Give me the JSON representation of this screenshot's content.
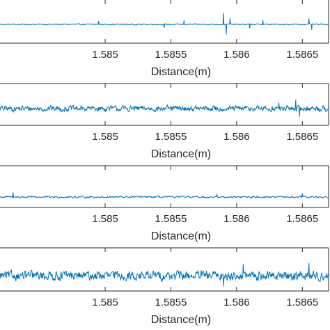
{
  "chart_data": [
    {
      "type": "line",
      "xlabel": "Distance(m)",
      "xlim": [
        1.5842,
        1.5867
      ],
      "xticks": [
        1.585,
        1.5855,
        1.586,
        1.5865
      ],
      "xtick_labels": [
        "1.585",
        "1.5855",
        "1.586",
        "1.5865"
      ],
      "noise_level": 0.07,
      "spikes": [
        {
          "x": 1.58495,
          "y": 0.25
        },
        {
          "x": 1.5856,
          "y": 0.3
        },
        {
          "x": 1.5861,
          "y": -0.3
        },
        {
          "x": 1.5859,
          "y": 0.9
        },
        {
          "x": 1.58592,
          "y": -0.8
        },
        {
          "x": 1.58595,
          "y": 0.5
        },
        {
          "x": 1.5862,
          "y": 0.35
        },
        {
          "x": 1.58655,
          "y": 0.45
        },
        {
          "x": 1.58657,
          "y": -0.4
        },
        {
          "x": 1.58545,
          "y": -0.25
        }
      ]
    },
    {
      "type": "line",
      "xlabel": "Distance(m)",
      "xlim": [
        1.5842,
        1.5867
      ],
      "xticks": [
        1.585,
        1.5855,
        1.586,
        1.5865
      ],
      "xtick_labels": [
        "1.585",
        "1.5855",
        "1.586",
        "1.5865"
      ],
      "noise_level": 0.45,
      "spikes": [
        {
          "x": 1.58645,
          "y": 0.9
        },
        {
          "x": 1.58648,
          "y": -0.8
        },
        {
          "x": 1.58632,
          "y": 0.6
        }
      ]
    },
    {
      "type": "line",
      "xlabel": "Distance(m)",
      "xlim": [
        1.5842,
        1.5867
      ],
      "xticks": [
        1.585,
        1.5855,
        1.586,
        1.5865
      ],
      "xtick_labels": [
        "1.585",
        "1.5855",
        "1.586",
        "1.5865"
      ],
      "noise_level": 0.15,
      "spikes": [
        {
          "x": 1.5843,
          "y": 0.45
        },
        {
          "x": 1.58585,
          "y": 0.3
        },
        {
          "x": 1.5865,
          "y": 0.35
        }
      ]
    },
    {
      "type": "line",
      "xlabel": "Distance(m)",
      "xlim": [
        1.5842,
        1.5867
      ],
      "xticks": [
        1.585,
        1.5855,
        1.586,
        1.5865
      ],
      "xtick_labels": [
        "1.585",
        "1.5855",
        "1.586",
        "1.5865"
      ],
      "noise_level": 0.5,
      "spikes": [
        {
          "x": 1.58605,
          "y": 0.8
        },
        {
          "x": 1.58655,
          "y": 0.9
        },
        {
          "x": 1.5859,
          "y": -0.75
        }
      ]
    }
  ]
}
